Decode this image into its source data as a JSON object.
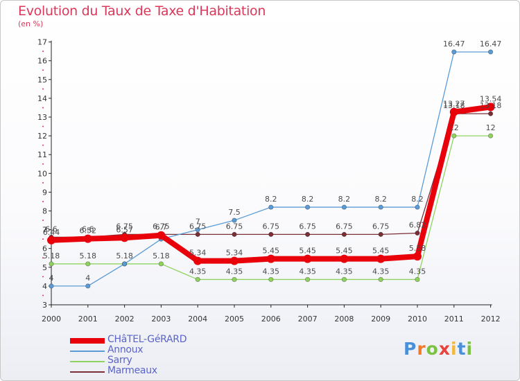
{
  "chart_data": {
    "type": "line",
    "title": "Evolution du Taux de Taxe d'Habitation",
    "subtitle": "(en %)",
    "ylim": [
      3,
      17
    ],
    "yticks": [
      3,
      4,
      5,
      6,
      7,
      8,
      9,
      10,
      11,
      12,
      13,
      14,
      15,
      16,
      17
    ],
    "categories": [
      "2000",
      "2001",
      "2002",
      "2003",
      "2004",
      "2005",
      "2006",
      "2007",
      "2008",
      "2009",
      "2010",
      "2011",
      "2012"
    ],
    "grid": false,
    "legend_position": "bottom-left",
    "series": [
      {
        "name": "CHâTEL-GéRARD",
        "color": "#e8000b",
        "values": [
          6.44,
          6.52,
          6.57,
          6.7,
          5.34,
          5.34,
          5.45,
          5.45,
          5.45,
          5.45,
          5.58,
          13.27,
          13.54
        ],
        "labels": [
          "6.44",
          "6.52",
          "6.57",
          "6.7",
          "5.34",
          "5.34",
          "5.45",
          "5.45",
          "5.45",
          "5.45",
          "5.58",
          "13.27",
          "13.54"
        ]
      },
      {
        "name": "Annoux",
        "color": "#5b9bd5",
        "values": [
          4,
          4,
          5.18,
          6.5,
          7,
          7.5,
          8.2,
          8.2,
          8.2,
          8.2,
          8.2,
          16.47,
          16.47
        ],
        "labels": [
          "4",
          "4",
          "",
          "",
          "7",
          "7.5",
          "8.2",
          "8.2",
          "8.2",
          "8.2",
          "8.2",
          "16.47",
          "16.47"
        ]
      },
      {
        "name": "Sarry",
        "color": "#8fd35e",
        "values": [
          5.18,
          5.18,
          5.18,
          5.18,
          4.35,
          4.35,
          4.35,
          4.35,
          4.35,
          4.35,
          4.35,
          12,
          12
        ],
        "labels": [
          "5.18",
          "5.18",
          "5.18",
          "5.18",
          "4.35",
          "4.35",
          "4.35",
          "4.35",
          "4.35",
          "4.35",
          "4.35",
          "12",
          "12"
        ]
      },
      {
        "name": "Marmeaux",
        "color": "#7a2e36",
        "values": [
          6.6,
          6.6,
          6.75,
          6.75,
          6.75,
          6.75,
          6.75,
          6.75,
          6.75,
          6.75,
          6.82,
          13.18,
          13.18
        ],
        "labels": [
          "6.6",
          "6.6",
          "6.75",
          "6.75",
          "6.75",
          "6.75",
          "6.75",
          "6.75",
          "6.75",
          "6.75",
          "6.82",
          "13.18",
          "13.18"
        ]
      }
    ]
  },
  "logo": {
    "letters": [
      "P",
      "r",
      "o",
      "x",
      "i",
      "t",
      "i"
    ],
    "colors": [
      "#4a90d9",
      "#f07a28",
      "#7cc242",
      "#e8423c",
      "#f2b83a",
      "#4a90d9",
      "#7cc242"
    ]
  }
}
